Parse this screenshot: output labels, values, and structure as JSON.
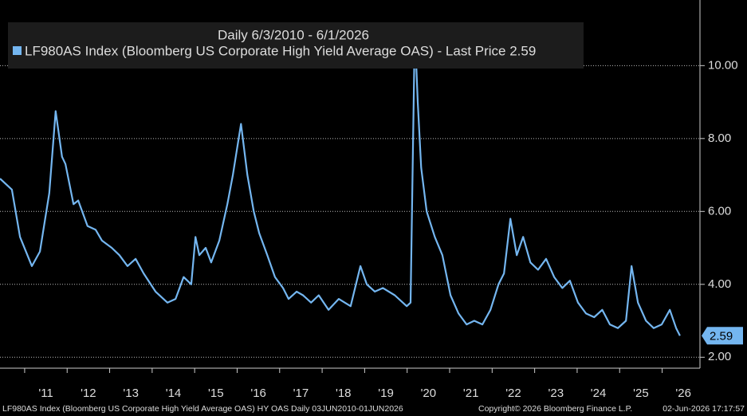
{
  "chart_data": {
    "type": "line",
    "subtitle": "Daily 6/3/2010 - 6/1/2026",
    "footer_left": "LF980AS Index (Bloomberg US Corporate High Yield Average OAS) HY OAS Daily 03JUN2010-01JUN2026",
    "footer_right": "Copyright© 2026 Bloomberg Finance L.P.",
    "timestamp": "02-Jun-2026 17:17:57",
    "x": [
      2010.42,
      2010.7,
      2010.89,
      2011.17,
      2011.36,
      2011.58,
      2011.73,
      2011.88,
      2011.96,
      2012.15,
      2012.26,
      2012.48,
      2012.67,
      2012.82,
      2013.05,
      2013.23,
      2013.42,
      2013.61,
      2013.8,
      2014.08,
      2014.36,
      2014.55,
      2014.74,
      2014.92,
      2015.02,
      2015.11,
      2015.26,
      2015.39,
      2015.58,
      2015.77,
      2015.9,
      2016.09,
      2016.24,
      2016.39,
      2016.52,
      2016.71,
      2016.89,
      2017.08,
      2017.21,
      2017.4,
      2017.55,
      2017.74,
      2017.92,
      2018.15,
      2018.39,
      2018.67,
      2018.9,
      2019.05,
      2019.24,
      2019.43,
      2019.71,
      2019.99,
      2020.08,
      2020.18,
      2020.25,
      2020.33,
      2020.46,
      2020.65,
      2020.83,
      2021.02,
      2021.21,
      2021.4,
      2021.58,
      2021.77,
      2021.96,
      2022.15,
      2022.28,
      2022.43,
      2022.58,
      2022.73,
      2022.9,
      2023.08,
      2023.27,
      2023.46,
      2023.65,
      2023.83,
      2024.02,
      2024.21,
      2024.4,
      2024.59,
      2024.77,
      2024.96,
      2025.15,
      2025.28,
      2025.43,
      2025.62,
      2025.8,
      2025.99,
      2026.18,
      2026.33,
      2026.42
    ],
    "series": [
      {
        "name": "LF980AS Index (Bloomberg US Corporate High Yield Average OAS) - Last Price 2.59",
        "color": "#74b6f0",
        "values": [
          6.9,
          6.6,
          5.3,
          4.5,
          4.9,
          6.5,
          8.75,
          7.5,
          7.3,
          6.2,
          6.3,
          5.6,
          5.5,
          5.2,
          5.0,
          4.8,
          4.5,
          4.7,
          4.3,
          3.8,
          3.5,
          3.6,
          4.2,
          4.0,
          5.3,
          4.8,
          5.0,
          4.6,
          5.2,
          6.2,
          7.0,
          8.4,
          7.0,
          6.0,
          5.4,
          4.8,
          4.2,
          3.9,
          3.6,
          3.8,
          3.7,
          3.5,
          3.7,
          3.3,
          3.6,
          3.4,
          4.5,
          4.0,
          3.8,
          3.9,
          3.7,
          3.4,
          3.5,
          11.0,
          9.0,
          7.2,
          6.0,
          5.3,
          4.8,
          3.7,
          3.2,
          2.9,
          3.0,
          2.9,
          3.3,
          4.0,
          4.3,
          5.8,
          4.8,
          5.3,
          4.6,
          4.4,
          4.7,
          4.2,
          3.9,
          4.1,
          3.5,
          3.2,
          3.1,
          3.3,
          2.9,
          2.8,
          3.0,
          4.5,
          3.5,
          3.0,
          2.8,
          2.9,
          3.3,
          2.8,
          2.59
        ]
      }
    ],
    "last_price": 2.59,
    "xlim": [
      2010.42,
      2026.89
    ],
    "xticks": [
      {
        "value": 2011,
        "label": "'11"
      },
      {
        "value": 2012,
        "label": "'12"
      },
      {
        "value": 2013,
        "label": "'13"
      },
      {
        "value": 2014,
        "label": "'14"
      },
      {
        "value": 2015,
        "label": "'15"
      },
      {
        "value": 2016,
        "label": "'16"
      },
      {
        "value": 2017,
        "label": "'17"
      },
      {
        "value": 2018,
        "label": "'18"
      },
      {
        "value": 2019,
        "label": "'19"
      },
      {
        "value": 2020,
        "label": "'20"
      },
      {
        "value": 2021,
        "label": "'21"
      },
      {
        "value": 2022,
        "label": "'22"
      },
      {
        "value": 2023,
        "label": "'23"
      },
      {
        "value": 2024,
        "label": "'24"
      },
      {
        "value": 2025,
        "label": "'25"
      },
      {
        "value": 2026,
        "label": "'26"
      }
    ],
    "ylim": [
      1.7,
      11.8
    ],
    "yticks": [
      {
        "value": 2,
        "label": "2.00"
      },
      {
        "value": 4,
        "label": "4.00"
      },
      {
        "value": 6,
        "label": "6.00"
      },
      {
        "value": 8,
        "label": "8.00"
      },
      {
        "value": 10,
        "label": "10.00"
      }
    ],
    "grid": true,
    "legend": "top-left"
  }
}
